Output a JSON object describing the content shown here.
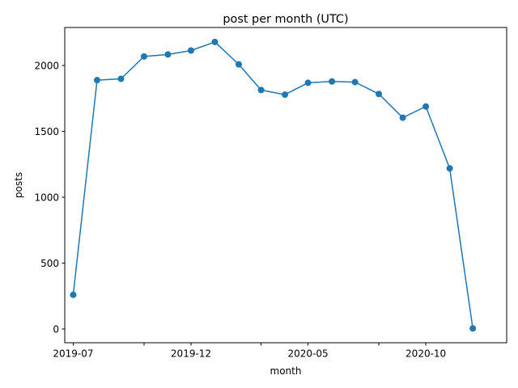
{
  "chart_data": {
    "type": "line",
    "title": "post per month (UTC)",
    "xlabel": "month",
    "ylabel": "posts",
    "x": [
      "2019-07",
      "2019-08",
      "2019-09",
      "2019-10",
      "2019-11",
      "2019-12",
      "2020-01",
      "2020-02",
      "2020-03",
      "2020-04",
      "2020-05",
      "2020-06",
      "2020-07",
      "2020-08",
      "2020-09",
      "2020-10",
      "2020-11",
      "2020-12"
    ],
    "series": [
      {
        "values": [
          260,
          1890,
          1900,
          2070,
          2085,
          2115,
          2180,
          2010,
          1815,
          1780,
          1870,
          1880,
          1875,
          1785,
          1605,
          1690,
          1220,
          5
        ]
      }
    ],
    "x_ticks": [
      {
        "month": "2019-07",
        "label": "2019-07"
      },
      {
        "month": "2019-10",
        "label": ""
      },
      {
        "month": "2019-12",
        "label": "2019-12"
      },
      {
        "month": "2020-03",
        "label": ""
      },
      {
        "month": "2020-05",
        "label": "2020-05"
      },
      {
        "month": "2020-08",
        "label": ""
      },
      {
        "month": "2020-10",
        "label": "2020-10"
      }
    ],
    "y_ticks": [
      0,
      500,
      1000,
      1500,
      2000
    ],
    "xlim": [
      "2019-06-20",
      "2021-01-14"
    ],
    "ylim": [
      -104,
      2290
    ],
    "color": "#1f77b4",
    "marker": "circle",
    "grid": false
  }
}
